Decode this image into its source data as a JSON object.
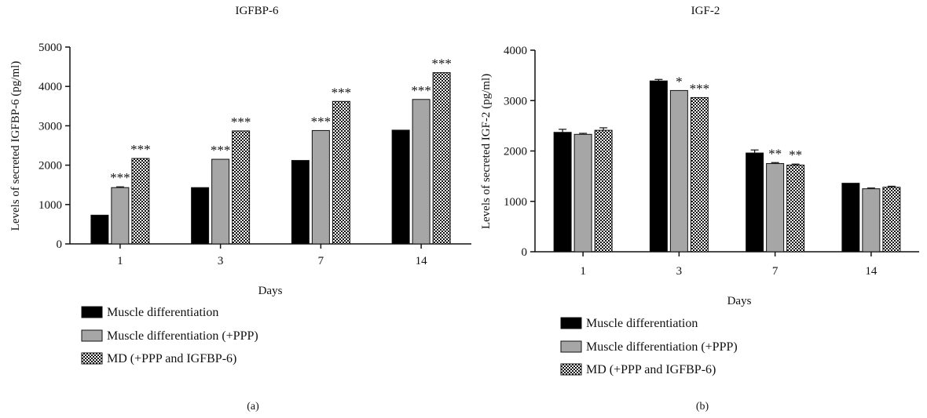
{
  "legend": [
    {
      "label": "Muscle differentiation",
      "pattern": "solid-black"
    },
    {
      "label": "Muscle differentiation (+PPP)",
      "pattern": "solid-gray"
    },
    {
      "label": "MD (+PPP and IGFBP-6)",
      "pattern": "checkered"
    }
  ],
  "colors": {
    "series1": "#000000",
    "series2": "#a6a6a6",
    "axis": "#111111"
  },
  "chart_data": [
    {
      "type": "bar",
      "panel_label": "(a)",
      "title": "IGFBP-6",
      "xlabel": "Days",
      "ylabel": "Levels of secreted IGFBP-6 (pg/ml)",
      "categories": [
        "1",
        "3",
        "7",
        "14"
      ],
      "ylim": [
        0,
        5000
      ],
      "yticks": [
        "0",
        "1000",
        "2000",
        "3000",
        "4000",
        "5000"
      ],
      "series": [
        {
          "name": "Muscle differentiation",
          "values": [
            730,
            1430,
            2120,
            2890
          ],
          "errors": [
            0,
            0,
            0,
            0
          ],
          "signif": [
            "",
            "",
            "",
            ""
          ]
        },
        {
          "name": "Muscle differentiation (+PPP)",
          "values": [
            1430,
            2150,
            2880,
            3670
          ],
          "errors": [
            20,
            0,
            0,
            0
          ],
          "signif": [
            "***",
            "***",
            "***",
            "***"
          ]
        },
        {
          "name": "MD (+PPP and IGFBP-6)",
          "values": [
            2170,
            2870,
            3620,
            4350
          ],
          "errors": [
            0,
            0,
            0,
            0
          ],
          "signif": [
            "***",
            "***",
            "***",
            "***"
          ]
        }
      ],
      "legend_position": "bottom-left"
    },
    {
      "type": "bar",
      "panel_label": "(b)",
      "title": "IGF-2",
      "xlabel": "Days",
      "ylabel": "Levels of secreted IGF-2 (pg/ml)",
      "categories": [
        "1",
        "3",
        "7",
        "14"
      ],
      "ylim": [
        0,
        4000
      ],
      "yticks": [
        "0",
        "1000",
        "2000",
        "3000",
        "4000"
      ],
      "series": [
        {
          "name": "Muscle differentiation",
          "values": [
            2370,
            3390,
            1960,
            1360
          ],
          "errors": [
            60,
            30,
            60,
            0
          ],
          "signif": [
            "",
            "",
            "",
            ""
          ]
        },
        {
          "name": "Muscle differentiation (+PPP)",
          "values": [
            2330,
            3200,
            1750,
            1250
          ],
          "errors": [
            20,
            0,
            20,
            15
          ],
          "signif": [
            "",
            "*",
            "**",
            ""
          ]
        },
        {
          "name": "MD (+PPP and IGFBP-6)",
          "values": [
            2410,
            3060,
            1720,
            1280
          ],
          "errors": [
            50,
            0,
            20,
            20
          ],
          "signif": [
            "",
            "***",
            "**",
            ""
          ]
        }
      ],
      "legend_position": "bottom-left"
    }
  ]
}
